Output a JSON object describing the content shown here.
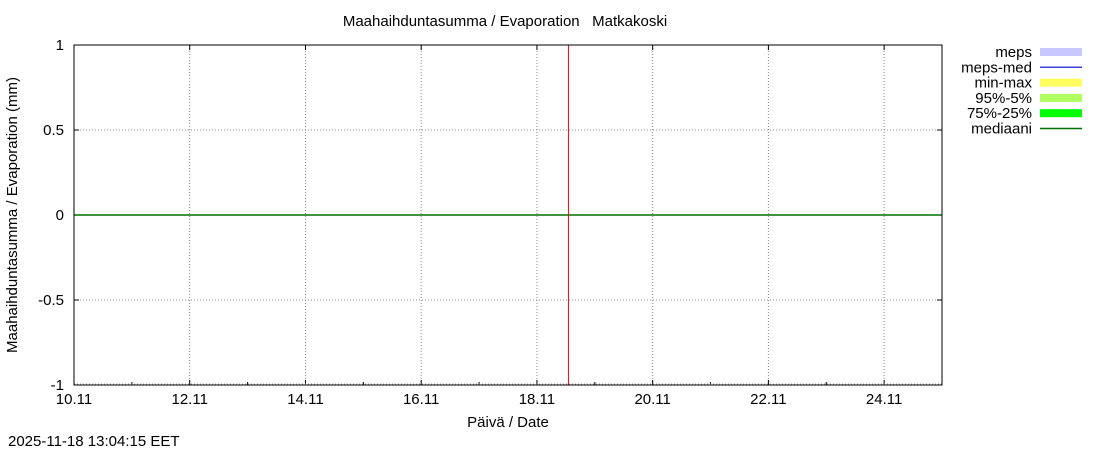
{
  "chart_data": {
    "type": "line",
    "title": "Maahaihduntasumma / Evaporation   Matkakoski",
    "xlabel": "Päivä / Date",
    "ylabel": "Maahaihduntasumma / Evaporation (mm)",
    "xlim": [
      "2025-11-10",
      "2025-11-25"
    ],
    "ylim": [
      -1,
      1
    ],
    "grid": true,
    "x_ticks": [
      "10.11",
      "12.11",
      "14.11",
      "16.11",
      "18.11",
      "20.11",
      "22.11",
      "24.11"
    ],
    "y_ticks": [
      "1",
      "0.5",
      "0",
      "-0.5",
      "-1"
    ],
    "y_tick_values": [
      1,
      0.5,
      0,
      -0.5,
      -1
    ],
    "legend_position": "right",
    "legend": [
      {
        "label": "meps",
        "color": "#c8c8ff",
        "kind": "band"
      },
      {
        "label": "meps-med",
        "color": "#4040e0",
        "kind": "line"
      },
      {
        "label": "min-max",
        "color": "#ffff60",
        "kind": "band"
      },
      {
        "label": "95%-5%",
        "color": "#b0ff60",
        "kind": "band"
      },
      {
        "label": "75%-25%",
        "color": "#00ff00",
        "kind": "band"
      },
      {
        "label": "mediaani",
        "color": "#007000",
        "kind": "line"
      }
    ],
    "series": [
      {
        "name": "mediaani",
        "x": [
          "2025-11-10",
          "2025-11-25"
        ],
        "y": [
          0,
          0
        ],
        "color": "#007000"
      }
    ],
    "now_marker": {
      "x": "2025-11-18 13:04",
      "color": "#ff0000"
    }
  },
  "footer": {
    "timestamp": "2025-11-18 13:04:15 EET"
  }
}
